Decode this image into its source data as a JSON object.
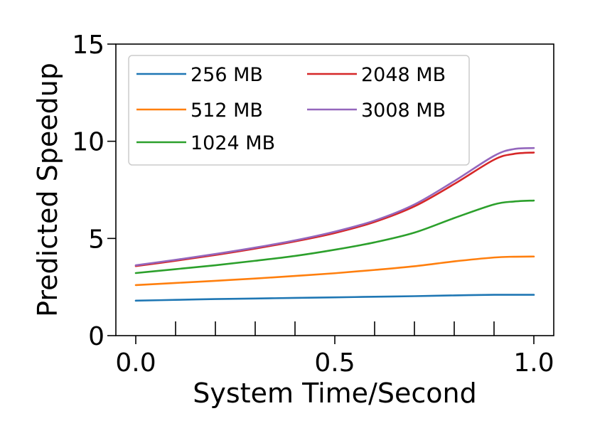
{
  "chart_data": {
    "type": "line",
    "xlabel": "System Time/Second",
    "ylabel": "Predicted Speedup",
    "xlim": [
      -0.05,
      1.05
    ],
    "ylim": [
      0,
      15
    ],
    "xticks": [
      0.0,
      0.5,
      1.0
    ],
    "xtick_labels": [
      "0.0",
      "0.5",
      "1.0"
    ],
    "xminor_ticks": [
      0.1,
      0.2,
      0.3,
      0.4,
      0.6,
      0.7,
      0.8,
      0.9
    ],
    "yticks": [
      0,
      5,
      10,
      15
    ],
    "ytick_labels": [
      "0",
      "5",
      "10",
      "15"
    ],
    "grid": false,
    "legend_position": "top-left",
    "x": [
      0.0,
      0.1,
      0.2,
      0.3,
      0.4,
      0.5,
      0.6,
      0.7,
      0.8,
      0.9,
      0.95,
      1.0
    ],
    "series": [
      {
        "name": "256 MB",
        "color": "#1f77b4",
        "values": [
          1.8,
          1.84,
          1.88,
          1.91,
          1.94,
          1.97,
          2.0,
          2.03,
          2.07,
          2.1,
          2.1,
          2.1
        ]
      },
      {
        "name": "512 MB",
        "color": "#ff7f0e",
        "values": [
          2.6,
          2.71,
          2.82,
          2.94,
          3.07,
          3.21,
          3.38,
          3.57,
          3.82,
          4.02,
          4.06,
          4.07
        ]
      },
      {
        "name": "1024 MB",
        "color": "#2ca02c",
        "values": [
          3.22,
          3.42,
          3.62,
          3.85,
          4.1,
          4.42,
          4.8,
          5.3,
          6.05,
          6.75,
          6.9,
          6.95
        ]
      },
      {
        "name": "2048 MB",
        "color": "#d62728",
        "values": [
          3.58,
          3.85,
          4.15,
          4.48,
          4.85,
          5.28,
          5.85,
          6.65,
          7.8,
          9.05,
          9.35,
          9.42
        ]
      },
      {
        "name": "3008 MB",
        "color": "#9467bd",
        "values": [
          3.62,
          3.9,
          4.2,
          4.53,
          4.9,
          5.35,
          5.92,
          6.75,
          7.95,
          9.25,
          9.6,
          9.65
        ]
      }
    ]
  }
}
